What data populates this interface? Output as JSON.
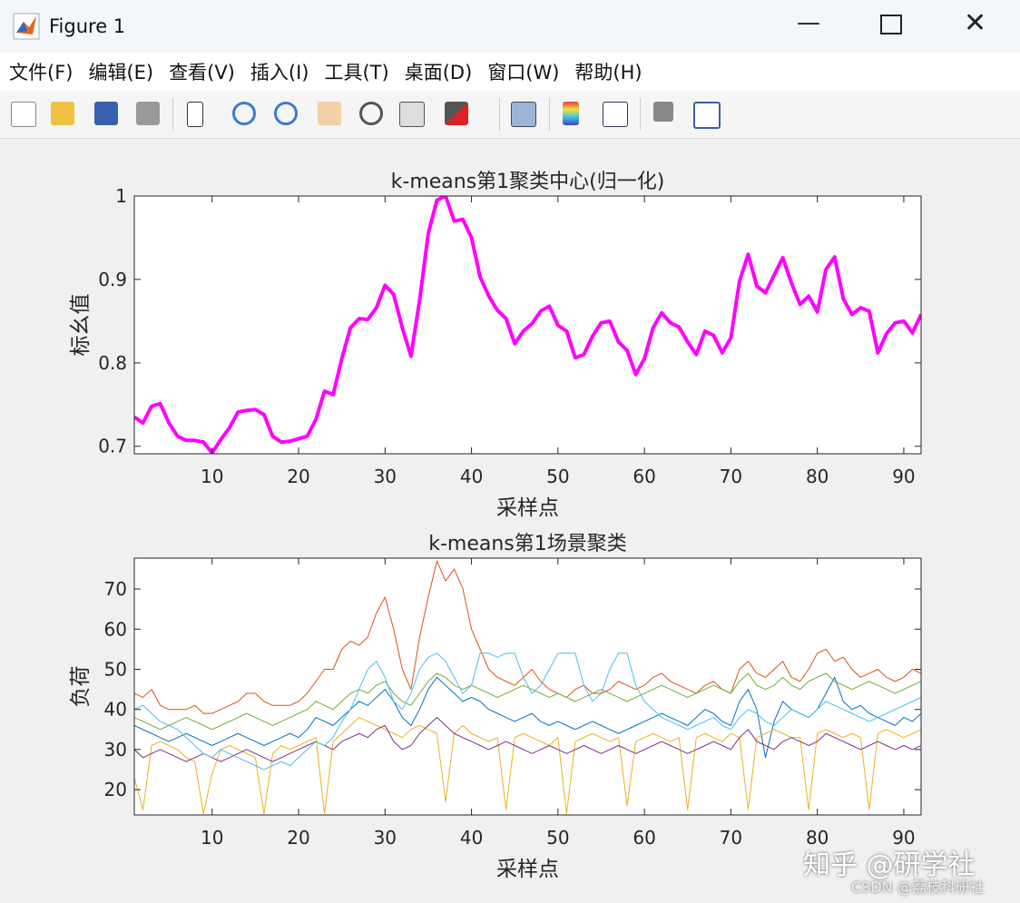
{
  "window": {
    "title": "Figure 1",
    "menu": [
      "文件(F)",
      "编辑(E)",
      "查看(V)",
      "插入(I)",
      "工具(T)",
      "桌面(D)",
      "窗口(W)",
      "帮助(H)"
    ]
  },
  "watermark": {
    "main": "知乎 @研学社",
    "sub": "CSDN @荔枝科研社"
  },
  "chart_data": [
    {
      "type": "line",
      "title": "k-means第1聚类中心(归一化)",
      "x_label": "采样点",
      "y_label": "标幺值",
      "x": [
        1,
        2,
        3,
        4,
        5,
        6,
        7,
        8,
        9,
        10,
        11,
        12,
        13,
        14,
        15,
        16,
        17,
        18,
        19,
        20,
        21,
        22,
        23,
        24,
        25,
        26,
        27,
        28,
        29,
        30,
        31,
        32,
        33,
        34,
        35,
        36,
        37,
        38,
        39,
        40,
        41,
        42,
        43,
        44,
        45,
        46,
        47,
        48,
        49,
        50,
        51,
        52,
        53,
        54,
        55,
        56,
        57,
        58,
        59,
        60,
        61,
        62,
        63,
        64,
        65,
        66,
        67,
        68,
        69,
        70,
        71,
        72,
        73,
        74,
        75,
        76,
        77,
        78,
        79,
        80,
        81,
        82,
        83,
        84,
        85,
        86,
        87,
        88,
        89,
        90,
        91,
        92
      ],
      "values": [
        0.735,
        0.728,
        0.748,
        0.751,
        0.728,
        0.712,
        0.707,
        0.707,
        0.705,
        0.692,
        0.708,
        0.722,
        0.741,
        0.743,
        0.744,
        0.738,
        0.712,
        0.705,
        0.706,
        0.709,
        0.712,
        0.732,
        0.766,
        0.762,
        0.805,
        0.842,
        0.853,
        0.852,
        0.866,
        0.893,
        0.882,
        0.842,
        0.808,
        0.875,
        0.955,
        0.995,
        1.0,
        0.97,
        0.972,
        0.95,
        0.903,
        0.88,
        0.863,
        0.853,
        0.823,
        0.838,
        0.847,
        0.862,
        0.868,
        0.845,
        0.838,
        0.806,
        0.81,
        0.832,
        0.848,
        0.85,
        0.825,
        0.815,
        0.786,
        0.805,
        0.842,
        0.86,
        0.848,
        0.843,
        0.825,
        0.81,
        0.838,
        0.833,
        0.812,
        0.83,
        0.898,
        0.93,
        0.892,
        0.884,
        0.905,
        0.926,
        0.896,
        0.87,
        0.88,
        0.861,
        0.912,
        0.927,
        0.877,
        0.858,
        0.866,
        0.862,
        0.812,
        0.835,
        0.848,
        0.85,
        0.836,
        0.858
      ],
      "color": "#ff00ff",
      "xlim": [
        1,
        92
      ],
      "xticks": [
        10,
        20,
        30,
        40,
        50,
        60,
        70,
        80,
        90
      ],
      "ylim": [
        0.691,
        1.0
      ],
      "yticks": [
        0.7,
        0.8,
        0.9,
        1
      ]
    },
    {
      "type": "line",
      "title": "k-means第1场景聚类",
      "x_label": "采样点",
      "y_label": "负荷",
      "x": [
        1,
        2,
        3,
        4,
        5,
        6,
        7,
        8,
        9,
        10,
        11,
        12,
        13,
        14,
        15,
        16,
        17,
        18,
        19,
        20,
        21,
        22,
        23,
        24,
        25,
        26,
        27,
        28,
        29,
        30,
        31,
        32,
        33,
        34,
        35,
        36,
        37,
        38,
        39,
        40,
        41,
        42,
        43,
        44,
        45,
        46,
        47,
        48,
        49,
        50,
        51,
        52,
        53,
        54,
        55,
        56,
        57,
        58,
        59,
        60,
        61,
        62,
        63,
        64,
        65,
        66,
        67,
        68,
        69,
        70,
        71,
        72,
        73,
        74,
        75,
        76,
        77,
        78,
        79,
        80,
        81,
        82,
        83,
        84,
        85,
        86,
        87,
        88,
        89,
        90,
        91,
        92
      ],
      "series": [
        {
          "color": "#0072bd",
          "values": [
            36,
            35,
            34,
            33,
            32,
            33,
            34,
            33,
            32,
            31,
            32,
            33,
            34,
            33,
            32,
            31,
            32,
            33,
            34,
            33,
            35,
            38,
            37,
            36,
            38,
            40,
            42,
            41,
            43,
            45,
            42,
            38,
            36,
            40,
            45,
            48,
            46,
            44,
            42,
            43,
            42,
            40,
            39,
            38,
            37,
            38,
            39,
            37,
            36,
            37,
            36,
            35,
            36,
            37,
            36,
            35,
            34,
            35,
            36,
            37,
            38,
            39,
            38,
            37,
            36,
            38,
            40,
            39,
            37,
            36,
            42,
            45,
            40,
            28,
            37,
            42,
            40,
            39,
            38,
            40,
            44,
            48,
            42,
            40,
            41,
            39,
            38,
            37,
            36,
            38,
            37,
            39
          ]
        },
        {
          "color": "#d95319",
          "values": [
            44,
            43,
            45,
            41,
            40,
            40,
            40,
            41,
            39,
            39,
            40,
            41,
            42,
            44,
            44,
            42,
            41,
            41,
            41,
            42,
            44,
            47,
            50,
            50,
            55,
            57,
            56,
            58,
            64,
            68,
            60,
            50,
            45,
            58,
            68,
            77,
            72,
            75,
            70,
            60,
            55,
            50,
            48,
            47,
            46,
            48,
            50,
            47,
            45,
            44,
            43,
            45,
            46,
            44,
            44,
            45,
            47,
            46,
            45,
            46,
            48,
            49,
            47,
            46,
            45,
            44,
            46,
            47,
            45,
            44,
            50,
            52,
            49,
            48,
            50,
            52,
            48,
            47,
            50,
            54,
            55,
            52,
            53,
            50,
            48,
            49,
            50,
            48,
            47,
            48,
            50,
            49
          ]
        },
        {
          "color": "#edb120",
          "values": [
            23,
            15,
            31,
            32,
            31,
            30,
            28,
            27,
            14,
            24,
            30,
            31,
            30,
            29,
            28,
            14,
            29,
            31,
            30,
            31,
            32,
            33,
            14,
            32,
            34,
            36,
            38,
            37,
            36,
            35,
            34,
            33,
            35,
            36,
            35,
            34,
            17,
            34,
            36,
            34,
            33,
            32,
            33,
            15,
            33,
            34,
            33,
            32,
            31,
            33,
            14,
            32,
            33,
            34,
            33,
            32,
            33,
            16,
            32,
            33,
            34,
            33,
            32,
            33,
            15,
            33,
            34,
            33,
            32,
            34,
            33,
            15,
            33,
            34,
            35,
            34,
            33,
            33,
            15,
            34,
            35,
            34,
            33,
            34,
            33,
            15,
            34,
            35,
            34,
            33,
            34,
            35
          ]
        },
        {
          "color": "#7e2f8e",
          "values": [
            30,
            28,
            29,
            30,
            29,
            28,
            27,
            28,
            29,
            28,
            27,
            28,
            29,
            30,
            29,
            28,
            27,
            28,
            29,
            30,
            31,
            32,
            31,
            30,
            32,
            33,
            34,
            33,
            35,
            36,
            32,
            30,
            31,
            34,
            36,
            38,
            36,
            34,
            33,
            32,
            31,
            30,
            31,
            32,
            31,
            30,
            29,
            30,
            31,
            30,
            29,
            30,
            31,
            30,
            29,
            30,
            31,
            30,
            29,
            30,
            31,
            32,
            31,
            30,
            29,
            30,
            31,
            32,
            31,
            30,
            33,
            35,
            32,
            31,
            30,
            32,
            33,
            32,
            31,
            32,
            34,
            33,
            32,
            31,
            30,
            31,
            32,
            31,
            30,
            31,
            30,
            31
          ]
        },
        {
          "color": "#77ac30",
          "values": [
            38,
            37,
            36,
            35,
            36,
            37,
            38,
            37,
            36,
            35,
            36,
            37,
            38,
            39,
            38,
            37,
            36,
            37,
            38,
            39,
            40,
            42,
            41,
            40,
            42,
            44,
            45,
            44,
            46,
            47,
            44,
            42,
            41,
            44,
            47,
            49,
            48,
            46,
            45,
            46,
            45,
            44,
            43,
            44,
            45,
            46,
            45,
            44,
            43,
            44,
            43,
            42,
            43,
            44,
            45,
            44,
            43,
            42,
            43,
            44,
            45,
            46,
            45,
            44,
            43,
            44,
            45,
            46,
            45,
            44,
            47,
            49,
            46,
            45,
            46,
            48,
            46,
            45,
            47,
            48,
            49,
            47,
            46,
            45,
            46,
            47,
            46,
            45,
            44,
            45,
            46,
            47
          ]
        },
        {
          "color": "#4dbeee",
          "values": [
            40,
            41,
            39,
            37,
            36,
            35,
            33,
            31,
            29,
            28,
            30,
            29,
            28,
            27,
            26,
            25,
            26,
            27,
            26,
            28,
            30,
            32,
            31,
            33,
            37,
            40,
            45,
            50,
            52,
            48,
            42,
            40,
            44,
            50,
            53,
            54,
            52,
            48,
            44,
            46,
            54,
            54,
            53,
            54,
            54,
            48,
            44,
            46,
            50,
            54,
            54,
            54,
            46,
            42,
            44,
            50,
            54,
            54,
            46,
            42,
            40,
            38,
            37,
            36,
            35,
            36,
            37,
            38,
            36,
            35,
            38,
            40,
            39,
            37,
            36,
            38,
            40,
            39,
            38,
            40,
            42,
            41,
            40,
            39,
            38,
            37,
            38,
            39,
            40,
            41,
            42,
            43
          ]
        }
      ],
      "xlim": [
        1,
        92
      ],
      "xticks": [
        10,
        20,
        30,
        40,
        50,
        60,
        70,
        80,
        90
      ],
      "ylim": [
        13.7,
        77.7
      ],
      "yticks": [
        20,
        30,
        40,
        50,
        60,
        70
      ]
    }
  ]
}
